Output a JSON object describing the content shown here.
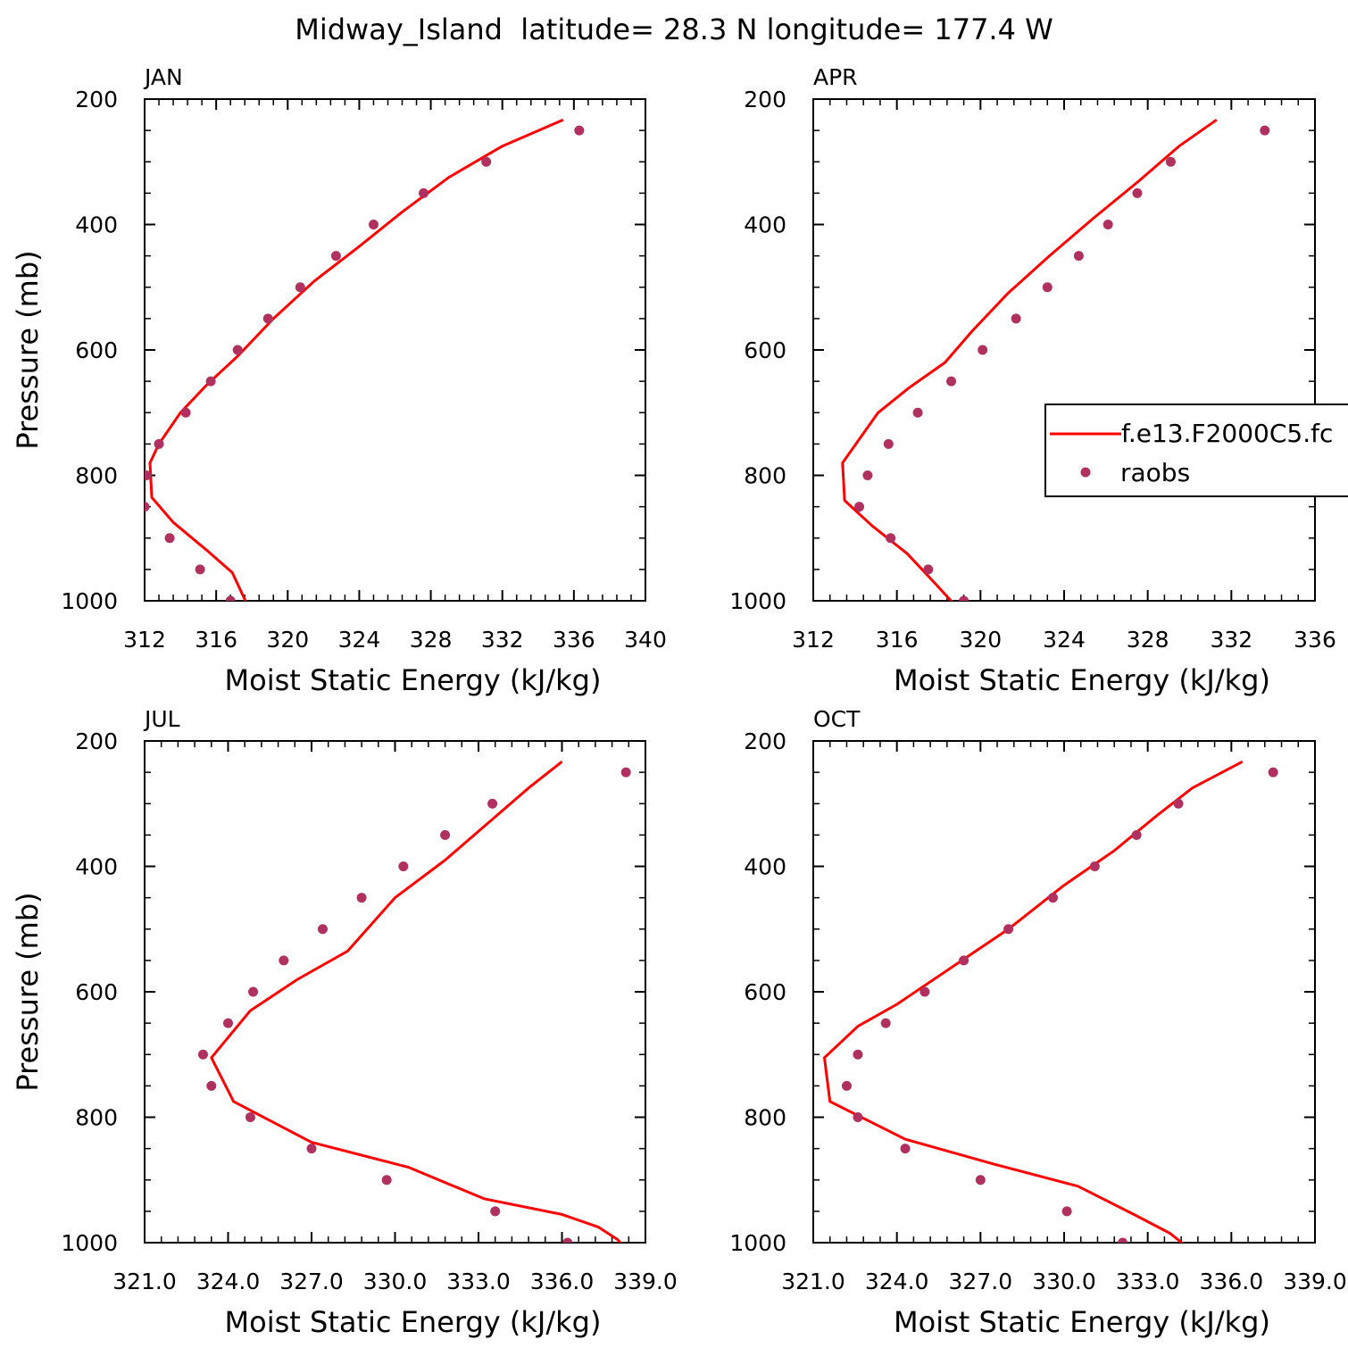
{
  "figure_title": "Midway_Island  latitude= 28.3 N longitude= 177.4 W",
  "colors": {
    "model_line": "#ff0000",
    "obs_points": "#b03060",
    "axes": "#000000"
  },
  "legend": {
    "placement": "right of APR panel, clipped at page edge",
    "entries": [
      {
        "label": "f.e13.F2000C5.fc",
        "kind": "line",
        "color": "#ff0000"
      },
      {
        "label": "raobs",
        "kind": "marker",
        "color": "#b03060"
      }
    ]
  },
  "chart_data": [
    {
      "type": "line",
      "panel": "JAN",
      "title": "JAN",
      "xlabel": "Moist Static Energy (kJ/kg)",
      "ylabel": "Pressure (mb)",
      "xlim": [
        312,
        340
      ],
      "ylim": [
        1000,
        200
      ],
      "y_inverted": true,
      "xticks": [
        "312",
        "316",
        "320",
        "324",
        "328",
        "332",
        "336",
        "340"
      ],
      "yticks": [
        "200",
        "400",
        "600",
        "800",
        "1000"
      ],
      "series": [
        {
          "name": "f.e13.F2000C5.fc",
          "kind": "line",
          "x": [
            335.4,
            332.0,
            329.0,
            326.4,
            324.0,
            321.5,
            319.2,
            317.2,
            315.5,
            314.0,
            312.8,
            312.3,
            312.4,
            313.6,
            315.5,
            316.9,
            317.8
          ],
          "y": [
            233,
            275,
            325,
            380,
            435,
            490,
            550,
            610,
            655,
            700,
            750,
            780,
            835,
            875,
            920,
            955,
            1010
          ]
        },
        {
          "name": "raobs",
          "kind": "scatter",
          "x": [
            336.3,
            331.1,
            327.6,
            324.8,
            322.7,
            320.7,
            318.9,
            317.2,
            315.7,
            314.3,
            312.8,
            312.1,
            312.0,
            313.4,
            315.1,
            316.8
          ],
          "y": [
            250,
            300,
            350,
            400,
            450,
            500,
            550,
            600,
            650,
            700,
            750,
            800,
            850,
            900,
            950,
            1000
          ]
        }
      ]
    },
    {
      "type": "line",
      "panel": "APR",
      "title": "APR",
      "xlabel": "Moist Static Energy (kJ/kg)",
      "ylabel": "",
      "xlim": [
        312,
        336
      ],
      "ylim": [
        1000,
        200
      ],
      "y_inverted": true,
      "xticks": [
        "312",
        "316",
        "320",
        "324",
        "328",
        "332",
        "336"
      ],
      "yticks": [
        "200",
        "400",
        "600",
        "800",
        "1000"
      ],
      "series": [
        {
          "name": "f.e13.F2000C5.fc",
          "kind": "line",
          "x": [
            331.3,
            329.5,
            327.6,
            325.4,
            323.3,
            321.3,
            319.6,
            318.3,
            316.6,
            315.1,
            313.4,
            313.5,
            314.8,
            316.5,
            317.9,
            319.0
          ],
          "y": [
            233,
            275,
            330,
            390,
            450,
            510,
            570,
            620,
            660,
            700,
            780,
            840,
            880,
            925,
            975,
            1015
          ]
        },
        {
          "name": "raobs",
          "kind": "scatter",
          "x": [
            333.6,
            329.1,
            327.5,
            326.1,
            324.7,
            323.2,
            321.7,
            320.1,
            318.6,
            317.0,
            315.6,
            314.6,
            314.2,
            315.7,
            317.5,
            319.2
          ],
          "y": [
            250,
            300,
            350,
            400,
            450,
            500,
            550,
            600,
            650,
            700,
            750,
            800,
            850,
            900,
            950,
            1000
          ]
        }
      ]
    },
    {
      "type": "line",
      "panel": "JUL",
      "title": "JUL",
      "xlabel": "Moist Static Energy (kJ/kg)",
      "ylabel": "Pressure (mb)",
      "xlim": [
        321.0,
        339.0
      ],
      "ylim": [
        1000,
        200
      ],
      "y_inverted": true,
      "xticks": [
        "321.0",
        "324.0",
        "327.0",
        "330.0",
        "333.0",
        "336.0",
        "339.0"
      ],
      "yticks": [
        "200",
        "400",
        "600",
        "800",
        "1000"
      ],
      "series": [
        {
          "name": "f.e13.F2000C5.fc",
          "kind": "line",
          "x": [
            336.0,
            334.8,
            333.5,
            331.8,
            330.0,
            328.3,
            326.5,
            324.8,
            323.4,
            324.2,
            327.0,
            330.5,
            333.2,
            336.0,
            337.3,
            338.0,
            338.3
          ],
          "y": [
            233,
            275,
            325,
            390,
            450,
            535,
            580,
            630,
            705,
            775,
            840,
            880,
            930,
            955,
            975,
            995,
            1010
          ]
        },
        {
          "name": "raobs",
          "kind": "scatter",
          "x": [
            338.3,
            333.5,
            331.8,
            330.3,
            328.8,
            327.4,
            326.0,
            324.9,
            324.0,
            323.1,
            323.4,
            324.8,
            327.0,
            329.7,
            333.6,
            336.2
          ],
          "y": [
            250,
            300,
            350,
            400,
            450,
            500,
            550,
            600,
            650,
            700,
            750,
            800,
            850,
            900,
            950,
            1000
          ]
        }
      ]
    },
    {
      "type": "line",
      "panel": "OCT",
      "title": "OCT",
      "xlabel": "Moist Static Energy (kJ/kg)",
      "ylabel": "",
      "xlim": [
        321.0,
        339.0
      ],
      "ylim": [
        1000,
        200
      ],
      "y_inverted": true,
      "xticks": [
        "321.0",
        "324.0",
        "327.0",
        "330.0",
        "333.0",
        "336.0",
        "339.0"
      ],
      "yticks": [
        "200",
        "400",
        "600",
        "800",
        "1000"
      ],
      "series": [
        {
          "name": "f.e13.F2000C5.fc",
          "kind": "line",
          "x": [
            336.4,
            334.6,
            333.3,
            331.8,
            330.0,
            328.0,
            326.0,
            324.0,
            322.6,
            321.4,
            321.6,
            324.3,
            327.5,
            330.5,
            332.5,
            333.8,
            334.5
          ],
          "y": [
            233,
            275,
            320,
            375,
            430,
            500,
            560,
            620,
            655,
            705,
            775,
            835,
            875,
            910,
            955,
            985,
            1010
          ]
        },
        {
          "name": "raobs",
          "kind": "scatter",
          "x": [
            337.5,
            334.1,
            332.6,
            331.1,
            329.6,
            328.0,
            326.4,
            325.0,
            323.6,
            322.6,
            322.2,
            322.6,
            324.3,
            327.0,
            330.1,
            332.1
          ],
          "y": [
            250,
            300,
            350,
            400,
            450,
            500,
            550,
            600,
            650,
            700,
            750,
            800,
            850,
            900,
            950,
            1000
          ]
        }
      ]
    }
  ]
}
